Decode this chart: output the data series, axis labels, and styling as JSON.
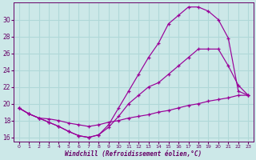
{
  "xlabel": "Windchill (Refroidissement éolien,°C)",
  "xlim": [
    -0.5,
    23.5
  ],
  "ylim": [
    15.5,
    32
  ],
  "yticks": [
    16,
    18,
    20,
    22,
    24,
    26,
    28,
    30
  ],
  "xticks": [
    0,
    1,
    2,
    3,
    4,
    5,
    6,
    7,
    8,
    9,
    10,
    11,
    12,
    13,
    14,
    15,
    16,
    17,
    18,
    19,
    20,
    21,
    22,
    23
  ],
  "bg_color": "#cce8e8",
  "grid_color": "#b0d8d8",
  "line_color": "#990099",
  "line1_x": [
    0,
    1,
    2,
    3,
    4,
    5,
    6,
    7,
    8,
    9,
    10,
    11,
    12,
    13,
    14,
    15,
    16,
    17,
    18,
    19,
    20,
    21,
    22,
    23
  ],
  "line1_y": [
    19.5,
    18.8,
    18.3,
    17.8,
    17.3,
    16.7,
    16.2,
    16.0,
    16.3,
    17.5,
    19.5,
    21.5,
    23.5,
    25.5,
    27.2,
    29.5,
    30.5,
    31.5,
    31.5,
    31.0,
    30.0,
    27.8,
    21.5,
    21.0
  ],
  "line2_x": [
    0,
    1,
    2,
    3,
    4,
    5,
    6,
    7,
    8,
    9,
    10,
    11,
    12,
    13,
    14,
    15,
    16,
    17,
    18,
    19,
    20,
    21,
    22,
    23
  ],
  "line2_y": [
    19.5,
    18.8,
    18.3,
    17.8,
    17.3,
    16.7,
    16.2,
    16.0,
    16.3,
    17.2,
    18.5,
    20.0,
    21.0,
    22.0,
    22.5,
    23.5,
    24.5,
    25.5,
    26.5,
    26.5,
    26.5,
    24.5,
    22.2,
    21.0
  ],
  "line3_x": [
    0,
    1,
    2,
    3,
    4,
    5,
    6,
    7,
    8,
    9,
    10,
    11,
    12,
    13,
    14,
    15,
    16,
    17,
    18,
    19,
    20,
    21,
    22,
    23
  ],
  "line3_y": [
    19.5,
    18.8,
    18.3,
    18.2,
    18.0,
    17.7,
    17.5,
    17.3,
    17.5,
    17.8,
    18.0,
    18.3,
    18.5,
    18.7,
    19.0,
    19.2,
    19.5,
    19.8,
    20.0,
    20.3,
    20.5,
    20.7,
    21.0,
    21.0
  ]
}
